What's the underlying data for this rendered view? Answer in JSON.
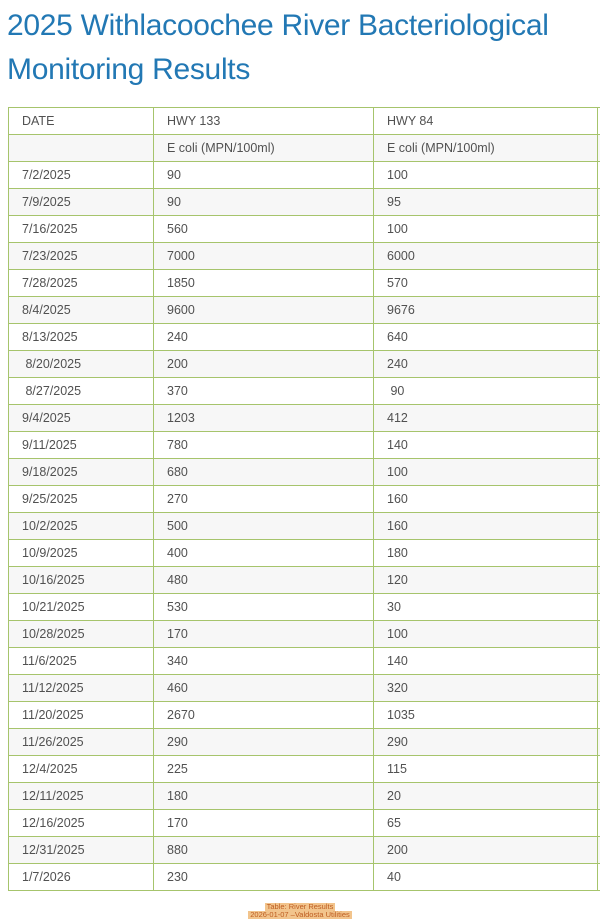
{
  "page": {
    "title_line1": "2025 Withlacoochee River Bacteriological",
    "title_line2": "Monitoring Results"
  },
  "table": {
    "columns": [
      "DATE",
      "HWY 133",
      "HWY 84"
    ],
    "subheaders": [
      "",
      "E coli (MPN/100ml)",
      "E coli (MPN/100ml)"
    ],
    "rows": [
      {
        "date": "7/2/2025",
        "hwy133": "90",
        "hwy84": "100"
      },
      {
        "date": "7/9/2025",
        "hwy133": "90",
        "hwy84": "95"
      },
      {
        "date": "7/16/2025",
        "hwy133": "560",
        "hwy84": "100"
      },
      {
        "date": "7/23/2025",
        "hwy133": "7000",
        "hwy84": "6000"
      },
      {
        "date": "7/28/2025",
        "hwy133": "1850",
        "hwy84": "570"
      },
      {
        "date": "8/4/2025",
        "hwy133": "9600",
        "hwy84": "9676"
      },
      {
        "date": "8/13/2025",
        "hwy133": "240",
        "hwy84": "640"
      },
      {
        "date": " 8/20/2025",
        "hwy133": "200",
        "hwy84": "240"
      },
      {
        "date": " 8/27/2025",
        "hwy133": "370",
        "hwy84": " 90"
      },
      {
        "date": "9/4/2025",
        "hwy133": "1203",
        "hwy84": "412"
      },
      {
        "date": "9/11/2025",
        "hwy133": "780",
        "hwy84": "140"
      },
      {
        "date": "9/18/2025",
        "hwy133": "680",
        "hwy84": "100"
      },
      {
        "date": "9/25/2025",
        "hwy133": "270",
        "hwy84": "160"
      },
      {
        "date": "10/2/2025",
        "hwy133": "500",
        "hwy84": "160"
      },
      {
        "date": "10/9/2025",
        "hwy133": "400",
        "hwy84": "180"
      },
      {
        "date": "10/16/2025",
        "hwy133": "480",
        "hwy84": "120"
      },
      {
        "date": "10/21/2025",
        "hwy133": "530",
        "hwy84": "30"
      },
      {
        "date": "10/28/2025",
        "hwy133": "170",
        "hwy84": "100"
      },
      {
        "date": "11/6/2025",
        "hwy133": "340",
        "hwy84": "140"
      },
      {
        "date": "11/12/2025",
        "hwy133": "460",
        "hwy84": "320"
      },
      {
        "date": "11/20/2025",
        "hwy133": "2670",
        "hwy84": "1035"
      },
      {
        "date": "11/26/2025",
        "hwy133": "290",
        "hwy84": "290"
      },
      {
        "date": "12/4/2025",
        "hwy133": "225",
        "hwy84": "115"
      },
      {
        "date": "12/11/2025",
        "hwy133": "180",
        "hwy84": "20"
      },
      {
        "date": "12/16/2025",
        "hwy133": "170",
        "hwy84": "65"
      },
      {
        "date": "12/31/2025",
        "hwy133": "880",
        "hwy84": "200"
      },
      {
        "date": "1/7/2026",
        "hwy133": "230",
        "hwy84": "40"
      }
    ]
  },
  "caption": {
    "line1": "Table: River Results",
    "line2": "2026-01-07 –Valdosta Utilities"
  },
  "colors": {
    "title_blue": "#2278b4",
    "table_border_green": "#a6c46c",
    "row_stripe_gray": "#f7f7f7",
    "cell_text_gray": "#515151",
    "caption_highlight": "#f2c48c",
    "caption_text": "#bd5c20"
  }
}
